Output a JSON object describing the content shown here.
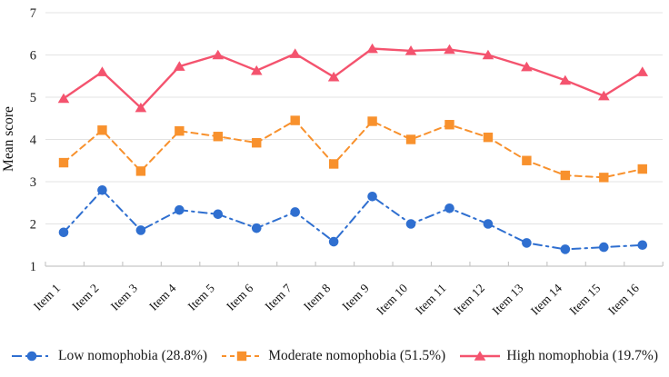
{
  "chart_data": {
    "type": "line",
    "title": "",
    "xlabel": "",
    "ylabel": "Mean score",
    "ylim": [
      1,
      7
    ],
    "yticks": [
      1,
      2,
      3,
      4,
      5,
      6,
      7
    ],
    "grid": "horizontal",
    "legend_position": "bottom",
    "grid_color": "#E3E3E3",
    "axis_color": "#C7C7C7",
    "text_color": "#1A1A1A",
    "categories": [
      "Item 1",
      "Item 2",
      "Item 3",
      "Item 4",
      "Item 5",
      "Item 6",
      "Item 7",
      "Item 8",
      "Item 9",
      "Item 10",
      "Item 11",
      "Item 12",
      "Item 13",
      "Item 14",
      "Item 15",
      "Item 16"
    ],
    "series": [
      {
        "name": "Low nomophobia (28.8%)",
        "color": "#2F6FD0",
        "marker": "circle",
        "line_style": "dash-dot",
        "values": [
          1.8,
          2.8,
          1.85,
          2.33,
          2.23,
          1.9,
          2.28,
          1.58,
          2.65,
          2.0,
          2.37,
          2.0,
          1.55,
          1.4,
          1.45,
          1.5
        ]
      },
      {
        "name": "Moderate nomophobia (51.5%)",
        "color": "#F8912D",
        "marker": "square",
        "line_style": "dashed",
        "values": [
          3.45,
          4.22,
          3.25,
          4.2,
          4.07,
          3.92,
          4.45,
          3.42,
          4.43,
          4.0,
          4.35,
          4.05,
          3.5,
          3.15,
          3.1,
          3.3
        ]
      },
      {
        "name": "High nomophobia (19.7%)",
        "color": "#F4536E",
        "marker": "triangle",
        "line_style": "solid",
        "values": [
          4.97,
          5.6,
          4.75,
          5.73,
          6.0,
          5.63,
          6.03,
          5.48,
          6.15,
          6.1,
          6.13,
          6.0,
          5.72,
          5.4,
          5.03,
          5.6
        ]
      }
    ]
  }
}
